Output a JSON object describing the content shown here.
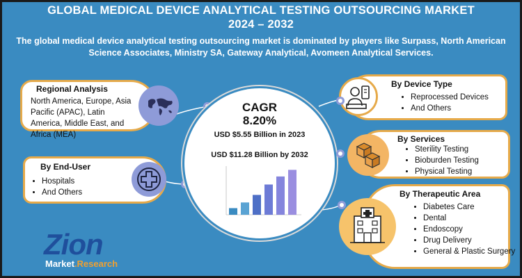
{
  "header": {
    "title_line1": "GLOBAL MEDICAL DEVICE ANALYTICAL TESTING OUTSOURCING MARKET",
    "title_line2": "2024 – 2032",
    "subtitle": "The global medical device analytical testing outsourcing market is dominated by players like Surpass, North American Science Associates, Ministry SA, Gateway Analytical, Avomeen Analytical Services."
  },
  "regional": {
    "title": "Regional Analysis",
    "text": "North America, Europe, Asia Pacific (APAC), Latin America, Middle East, and Africa (MEA)",
    "icon": "world-map-icon"
  },
  "end_user": {
    "title": "By End-User",
    "items": [
      "Hospitals",
      "And Others"
    ],
    "icon": "medical-cross-icon"
  },
  "center": {
    "cagr_label": "CAGR",
    "cagr_value": "8.20%",
    "value_2023": "USD $5.55 Billion in 2023",
    "value_2032": "USD $11.28 Billion by 2032"
  },
  "chart_data": {
    "type": "bar",
    "categories": [
      "",
      "",
      "",
      "",
      "",
      ""
    ],
    "values": [
      1.4,
      2.6,
      4.2,
      6.4,
      8.1,
      9.5
    ],
    "ylim": [
      0,
      10
    ],
    "colors": [
      "#3a8bc1",
      "#5aa3d3",
      "#4e6fc6",
      "#6d7bd6",
      "#8585dd",
      "#9a8ee0"
    ]
  },
  "device_type": {
    "title": "By Device Type",
    "items": [
      "Reprocessed Devices",
      "And Others"
    ],
    "icon": "device-technician-icon"
  },
  "services": {
    "title": "By Services",
    "items": [
      "Sterility Testing",
      "Bioburden Testing",
      "Physical Testing"
    ],
    "icon": "boxes-icon"
  },
  "therapeutic": {
    "title": "By Therapeutic Area",
    "items": [
      "Diabetes Care",
      "Dental",
      "Endoscopy",
      "Drug Delivery",
      "General & Plastic Surgery"
    ],
    "icon": "hospital-building-icon"
  },
  "logo": {
    "brand": "Zion",
    "tag_market": "Market",
    "tag_research": "Research"
  },
  "colors": {
    "background": "#3a8bc1",
    "accent_orange": "#e6aa4a",
    "accent_purple": "#8e9bd8"
  }
}
